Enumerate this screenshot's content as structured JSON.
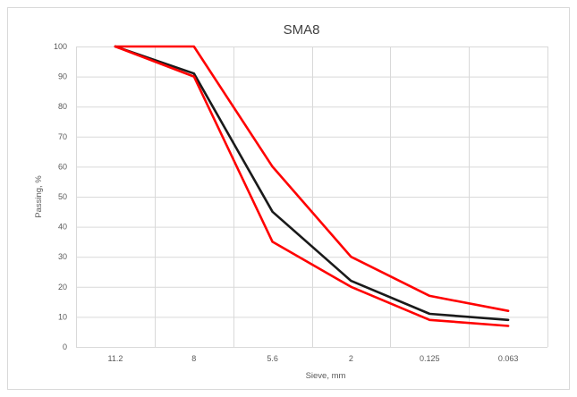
{
  "chart_data": {
    "type": "line",
    "title": "SMA8",
    "xlabel": "Sieve, mm",
    "ylabel": "Passing, %",
    "categories": [
      "11.2",
      "8",
      "5.6",
      "2",
      "0.125",
      "0.063"
    ],
    "ylim": [
      0,
      100
    ],
    "yticks": [
      0,
      10,
      20,
      30,
      40,
      50,
      60,
      70,
      80,
      90,
      100
    ],
    "grid": true,
    "legend": "none",
    "series": [
      {
        "color": "#ff0000",
        "values": [
          100,
          100,
          60,
          30,
          17,
          12
        ]
      },
      {
        "color": "#1a1a1a",
        "values": [
          100,
          91,
          45,
          22,
          11,
          9
        ]
      },
      {
        "color": "#ff0000",
        "values": [
          100,
          90,
          35,
          20,
          9,
          7
        ]
      }
    ]
  }
}
